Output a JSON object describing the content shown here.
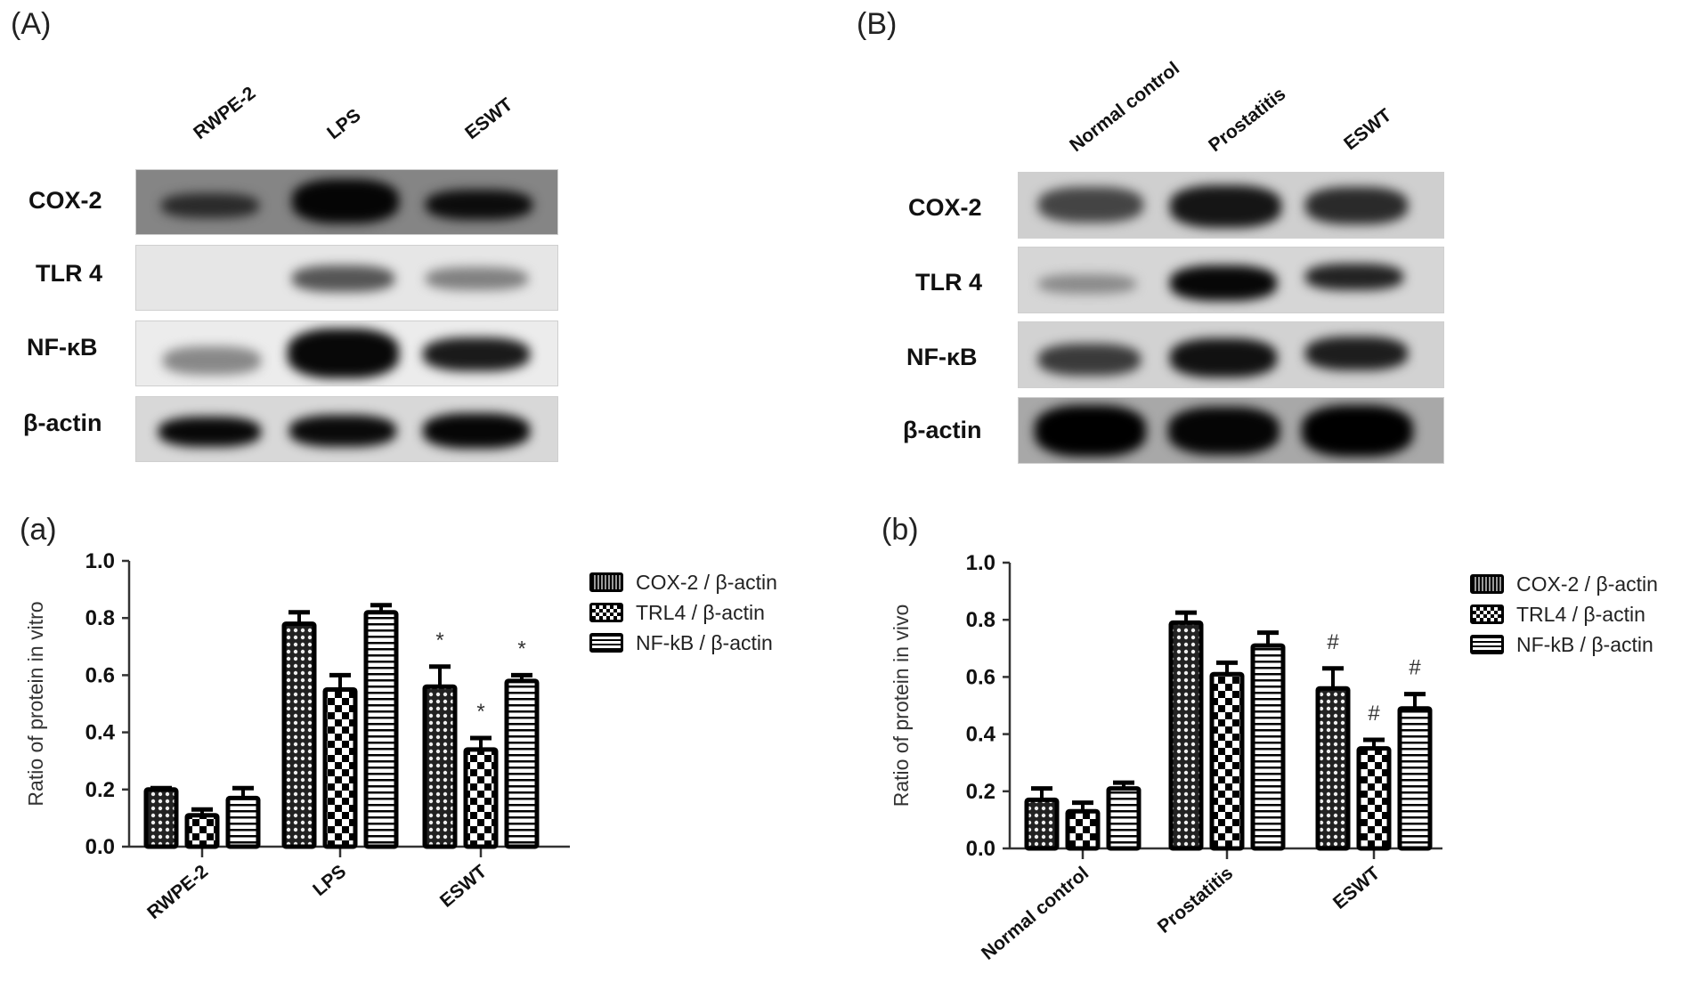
{
  "panels": {
    "A": {
      "label": "(A)",
      "lanes": [
        "RWPE-2",
        "LPS",
        "ESWT"
      ],
      "proteins": [
        "COX-2",
        "TLR 4",
        "NF-κB",
        "β-actin"
      ]
    },
    "B": {
      "label": "(B)",
      "lanes": [
        "Normal control",
        "Prostatitis",
        "ESWT"
      ],
      "proteins": [
        "COX-2",
        "TLR 4",
        "NF-κB",
        "β-actin"
      ]
    },
    "a": {
      "label": "(a)"
    },
    "b": {
      "label": "(b)"
    }
  },
  "legend": [
    "COX-2 / β-actin",
    "TRL4 / β-actin",
    "NF-kB / β-actin"
  ],
  "chart_data": [
    {
      "type": "bar",
      "title": "(a)",
      "xlabel": "",
      "ylabel": "Ratio of protein in vitro",
      "ylim": [
        0,
        1.0
      ],
      "yticks": [
        "0.0",
        "0.2",
        "0.4",
        "0.6",
        "0.8",
        "1.0"
      ],
      "categories": [
        "RWPE-2",
        "LPS",
        "ESWT"
      ],
      "series": [
        {
          "name": "COX-2 / β-actin",
          "pattern": "dots",
          "values": [
            0.2,
            0.78,
            0.56
          ],
          "errors": [
            0.005,
            0.04,
            0.07
          ]
        },
        {
          "name": "TRL4 / β-actin",
          "pattern": "checker",
          "values": [
            0.11,
            0.55,
            0.34
          ],
          "errors": [
            0.02,
            0.05,
            0.04
          ]
        },
        {
          "name": "NF-kB / β-actin",
          "pattern": "hstripes",
          "values": [
            0.17,
            0.82,
            0.58
          ],
          "errors": [
            0.035,
            0.025,
            0.02
          ]
        }
      ],
      "annotations": [
        {
          "category": "ESWT",
          "series": 0,
          "text": "*"
        },
        {
          "category": "ESWT",
          "series": 1,
          "text": "*"
        },
        {
          "category": "ESWT",
          "series": 2,
          "text": "*"
        }
      ],
      "legend_position": "right",
      "grid": false
    },
    {
      "type": "bar",
      "title": "(b)",
      "xlabel": "",
      "ylabel": "Ratio of protein in vivo",
      "ylim": [
        0,
        1.0
      ],
      "yticks": [
        "0.0",
        "0.2",
        "0.4",
        "0.6",
        "0.8",
        "1.0"
      ],
      "categories": [
        "Normal control",
        "Prostatitis",
        "ESWT"
      ],
      "series": [
        {
          "name": "COX-2 / β-actin",
          "pattern": "dots",
          "values": [
            0.17,
            0.79,
            0.56
          ],
          "errors": [
            0.04,
            0.035,
            0.07
          ]
        },
        {
          "name": "TRL4 / β-actin",
          "pattern": "checker",
          "values": [
            0.13,
            0.61,
            0.35
          ],
          "errors": [
            0.03,
            0.04,
            0.03
          ]
        },
        {
          "name": "NF-kB / β-actin",
          "pattern": "hstripes",
          "values": [
            0.21,
            0.71,
            0.49
          ],
          "errors": [
            0.02,
            0.045,
            0.05
          ]
        }
      ],
      "annotations": [
        {
          "category": "ESWT",
          "series": 0,
          "text": "#"
        },
        {
          "category": "ESWT",
          "series": 1,
          "text": "#"
        },
        {
          "category": "ESWT",
          "series": 2,
          "text": "#"
        }
      ],
      "legend_position": "right",
      "grid": false
    }
  ]
}
